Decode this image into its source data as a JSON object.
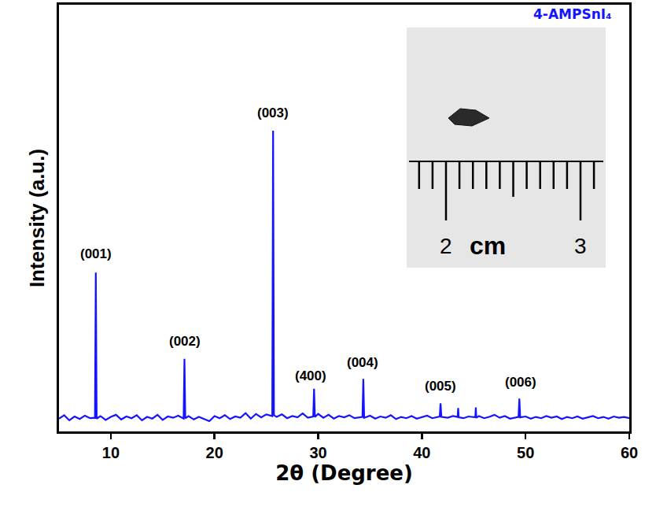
{
  "chart_data": {
    "type": "line",
    "x_label": "2θ (Degree)",
    "y_label": "Intensity (a.u.)",
    "color": "#1414ff",
    "xlim": [
      5,
      60
    ],
    "xticks": [
      10,
      20,
      30,
      40,
      50,
      60
    ],
    "ylim": [
      0,
      100
    ],
    "tick_labels": "x",
    "grid": false,
    "x": [
      5.0,
      5.5,
      6.0,
      6.5,
      7.0,
      7.5,
      8.0,
      8.47,
      8.55,
      8.63,
      9.0,
      9.5,
      10.0,
      10.5,
      11.0,
      11.5,
      12.0,
      12.5,
      13.0,
      13.5,
      14.0,
      14.5,
      15.0,
      15.5,
      16.0,
      16.5,
      17.02,
      17.1,
      17.18,
      17.5,
      18.0,
      18.5,
      19.0,
      19.5,
      20.0,
      20.5,
      21.0,
      21.5,
      22.0,
      22.5,
      23.0,
      23.5,
      24.0,
      24.5,
      25.0,
      25.57,
      25.65,
      25.73,
      26.0,
      26.5,
      27.0,
      27.5,
      28.0,
      28.5,
      29.0,
      29.52,
      29.6,
      29.68,
      30.0,
      30.5,
      31.0,
      31.5,
      32.0,
      32.5,
      33.0,
      33.5,
      34.27,
      34.35,
      34.43,
      35.0,
      35.5,
      36.0,
      36.5,
      37.0,
      37.5,
      38.0,
      38.5,
      39.0,
      39.5,
      40.0,
      40.5,
      41.0,
      41.72,
      41.8,
      41.88,
      42.5,
      43.0,
      43.45,
      43.5,
      43.55,
      44.0,
      44.5,
      45.15,
      45.2,
      45.25,
      45.5,
      46.0,
      46.5,
      47.0,
      47.5,
      48.0,
      48.5,
      49.32,
      49.4,
      49.48,
      50.0,
      50.5,
      51.0,
      51.5,
      52.0,
      52.5,
      53.0,
      53.5,
      54.0,
      54.5,
      55.0,
      55.5,
      56.0,
      56.5,
      57.0,
      57.5,
      58.0,
      58.5,
      59.0,
      59.5,
      60.0
    ],
    "values": [
      3.0,
      3.8,
      2.6,
      3.5,
      2.9,
      3.7,
      3.1,
      3.2,
      37.2,
      3.0,
      3.6,
      2.7,
      3.4,
      3.9,
      2.8,
      3.5,
      3.1,
      3.8,
      2.6,
      3.4,
      3.0,
      3.9,
      2.7,
      3.5,
      3.2,
      3.7,
      3.0,
      17.0,
      3.1,
      3.6,
      2.8,
      3.4,
      2.9,
      2.4,
      3.6,
      3.1,
      3.8,
      2.9,
      3.5,
      3.2,
      4.3,
      3.0,
      4.1,
      3.3,
      4.0,
      3.6,
      70.5,
      3.8,
      3.4,
      4.0,
      3.1,
      3.6,
      3.3,
      4.2,
      3.2,
      3.5,
      10.0,
      3.4,
      4.1,
      3.2,
      3.9,
      3.0,
      3.6,
      3.3,
      3.8,
      3.1,
      3.4,
      12.3,
      3.2,
      3.7,
      3.0,
      3.5,
      3.2,
      3.8,
      2.9,
      3.4,
      3.1,
      3.6,
      3.0,
      3.3,
      3.7,
      3.1,
      3.5,
      6.6,
      3.4,
      3.2,
      3.6,
      3.4,
      5.5,
      3.3,
      3.1,
      3.5,
      3.3,
      5.6,
      3.2,
      3.6,
      3.1,
      3.4,
      3.9,
      3.2,
      3.6,
      3.0,
      3.4,
      7.7,
      3.3,
      3.5,
      3.0,
      3.4,
      3.1,
      3.6,
      3.2,
      3.5,
      2.9,
      3.4,
      3.1,
      3.5,
      3.0,
      3.3,
      3.6,
      3.1,
      3.4,
      3.0,
      3.5,
      3.2,
      3.4,
      3.1
    ],
    "annotations": [
      {
        "text": "(001)",
        "x": 8.55,
        "y": 39.5
      },
      {
        "text": "(002)",
        "x": 17.1,
        "y": 19.0
      },
      {
        "text": "(003)",
        "x": 25.65,
        "y": 72.5
      },
      {
        "text": "(400)",
        "x": 29.3,
        "y": 10.8
      },
      {
        "text": "(004)",
        "x": 34.3,
        "y": 14.0
      },
      {
        "text": "(005)",
        "x": 41.8,
        "y": 8.5
      },
      {
        "text": "(006)",
        "x": 49.5,
        "y": 9.4
      }
    ],
    "label": "4-AMPSnI₄",
    "inset": {
      "labels": [
        "2",
        "cm",
        "3"
      ]
    }
  }
}
